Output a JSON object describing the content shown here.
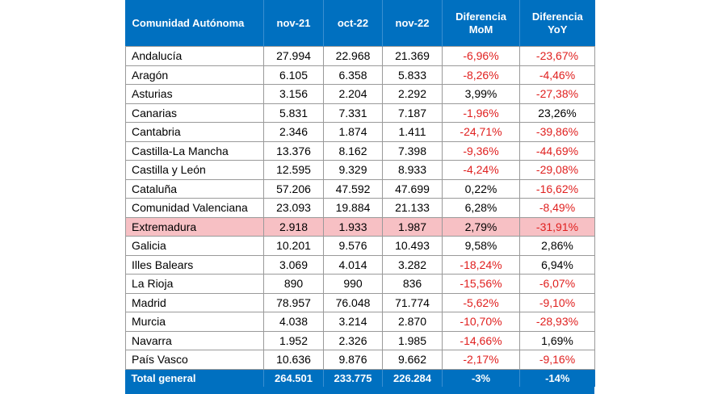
{
  "table": {
    "headers": [
      "Comunidad Autónoma",
      "nov-21",
      "oct-22",
      "nov-22",
      "Diferencia MoM",
      "Diferencia YoY"
    ],
    "rows": [
      {
        "region": "Andalucía",
        "nov21": "27.994",
        "oct22": "22.968",
        "nov22": "21.369",
        "mom": "-6,96%",
        "yoy": "-23,67%"
      },
      {
        "region": "Aragón",
        "nov21": "6.105",
        "oct22": "6.358",
        "nov22": "5.833",
        "mom": "-8,26%",
        "yoy": "-4,46%"
      },
      {
        "region": "Asturias",
        "nov21": "3.156",
        "oct22": "2.204",
        "nov22": "2.292",
        "mom": "3,99%",
        "yoy": "-27,38%"
      },
      {
        "region": "Canarias",
        "nov21": "5.831",
        "oct22": "7.331",
        "nov22": "7.187",
        "mom": "-1,96%",
        "yoy": "23,26%"
      },
      {
        "region": "Cantabria",
        "nov21": "2.346",
        "oct22": "1.874",
        "nov22": "1.411",
        "mom": "-24,71%",
        "yoy": "-39,86%"
      },
      {
        "region": "Castilla-La Mancha",
        "nov21": "13.376",
        "oct22": "8.162",
        "nov22": "7.398",
        "mom": "-9,36%",
        "yoy": "-44,69%"
      },
      {
        "region": "Castilla y León",
        "nov21": "12.595",
        "oct22": "9.329",
        "nov22": "8.933",
        "mom": "-4,24%",
        "yoy": "-29,08%"
      },
      {
        "region": "Cataluña",
        "nov21": "57.206",
        "oct22": "47.592",
        "nov22": "47.699",
        "mom": "0,22%",
        "yoy": "-16,62%"
      },
      {
        "region": "Comunidad Valenciana",
        "nov21": "23.093",
        "oct22": "19.884",
        "nov22": "21.133",
        "mom": "6,28%",
        "yoy": "-8,49%"
      },
      {
        "region": "Extremadura",
        "nov21": "2.918",
        "oct22": "1.933",
        "nov22": "1.987",
        "mom": "2,79%",
        "yoy": "-31,91%",
        "highlight": true
      },
      {
        "region": "Galicia",
        "nov21": "10.201",
        "oct22": "9.576",
        "nov22": "10.493",
        "mom": "9,58%",
        "yoy": "2,86%"
      },
      {
        "region": "Illes Balears",
        "nov21": "3.069",
        "oct22": "4.014",
        "nov22": "3.282",
        "mom": "-18,24%",
        "yoy": "6,94%"
      },
      {
        "region": "La Rioja",
        "nov21": "890",
        "oct22": "990",
        "nov22": "836",
        "mom": "-15,56%",
        "yoy": "-6,07%"
      },
      {
        "region": "Madrid",
        "nov21": "78.957",
        "oct22": "76.048",
        "nov22": "71.774",
        "mom": "-5,62%",
        "yoy": "-9,10%"
      },
      {
        "region": "Murcia",
        "nov21": "4.038",
        "oct22": "3.214",
        "nov22": "2.870",
        "mom": "-10,70%",
        "yoy": "-28,93%"
      },
      {
        "region": "Navarra",
        "nov21": "1.952",
        "oct22": "2.326",
        "nov22": "1.985",
        "mom": "-14,66%",
        "yoy": "1,69%"
      },
      {
        "region": "País Vasco",
        "nov21": "10.636",
        "oct22": "9.876",
        "nov22": "9.662",
        "mom": "-2,17%",
        "yoy": "-9,16%"
      }
    ],
    "total": {
      "region": "Total general",
      "nov21": "264.501",
      "oct22": "233.775",
      "nov22": "226.284",
      "mom": "-3%",
      "yoy": "-14%"
    }
  },
  "colors": {
    "header_bg": "#0070c0",
    "negative_text": "#e0201f",
    "highlight_row": "#f7c0c4"
  }
}
